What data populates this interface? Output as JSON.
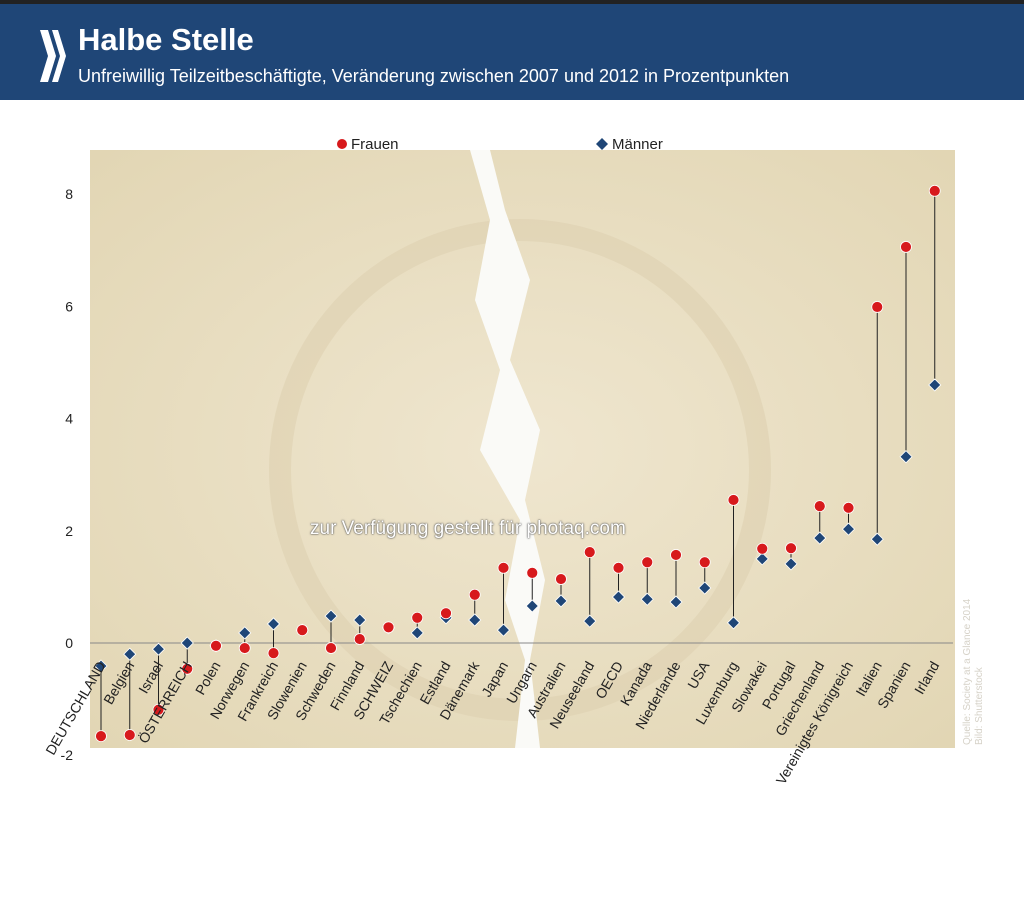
{
  "header": {
    "title": "Halbe Stelle",
    "subtitle": "Unfreiwillig Teilzeitbeschäftigte, Veränderung zwischen 2007 und 2012 in Prozentpunkten"
  },
  "source": {
    "line1": "Quelle: Society at a Glance 2014",
    "line2": "Bild: Shutterstock"
  },
  "watermark": "zur Verfügung gestellt für photaq.com",
  "chart_data": {
    "type": "scatter",
    "subtype": "dumbbell",
    "categories": [
      "DEUTSCHLAND",
      "Belgien",
      "Israel",
      "ÖSTERREICH",
      "Polen",
      "Norwegen",
      "Frankreich",
      "Slowenien",
      "Schweden",
      "Finnland",
      "SCHWEIZ",
      "Tschechien",
      "Estland",
      "Dänemark",
      "Japan",
      "Ungarn",
      "Australien",
      "Neuseeland",
      "OECD",
      "Kanada",
      "Niederlande",
      "USA",
      "Luxemburg",
      "Slowakei",
      "Portugal",
      "Griechenland",
      "Vereinigtes Königreich",
      "Italien",
      "Spanien",
      "Irland"
    ],
    "series": [
      {
        "name": "Frauen",
        "marker": "circle",
        "color": "#d7191c",
        "values": [
          -1.66,
          -1.64,
          -1.19,
          -0.46,
          -0.05,
          -0.09,
          -0.18,
          0.23,
          -0.09,
          0.07,
          0.28,
          0.45,
          0.53,
          0.86,
          1.34,
          1.25,
          1.14,
          1.62,
          1.34,
          1.44,
          1.57,
          1.44,
          2.55,
          1.68,
          1.69,
          2.44,
          2.41,
          5.99,
          7.06,
          8.06
        ]
      },
      {
        "name": "Männer",
        "marker": "diamond",
        "color": "#1f4677",
        "values": [
          -0.41,
          -0.2,
          -0.11,
          0.0,
          -0.05,
          0.18,
          0.34,
          0.23,
          0.48,
          0.41,
          0.27,
          0.18,
          0.45,
          0.41,
          0.23,
          0.66,
          0.75,
          0.39,
          0.82,
          0.78,
          0.73,
          0.98,
          0.36,
          1.5,
          1.41,
          1.87,
          2.03,
          1.85,
          3.32,
          4.6
        ]
      }
    ],
    "ylim": [
      -2,
      8
    ],
    "yticks": [
      "-2",
      "0",
      "2",
      "4",
      "6",
      "8"
    ],
    "legend_position": "top",
    "grid": false
  }
}
